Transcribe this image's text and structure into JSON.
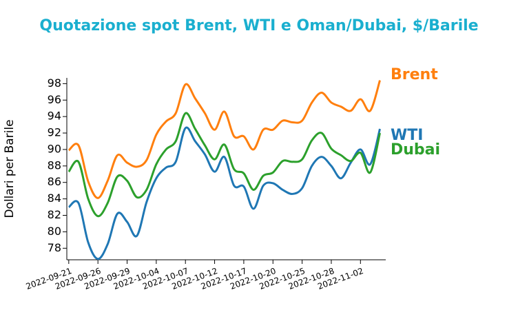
{
  "chart_data": {
    "type": "line",
    "title": "Quotazione spot Brent, WTI e Oman/Dubai, $/Barile",
    "y_label": "Dollari per Barile",
    "categories": [
      "2022-09-21",
      null,
      null,
      "2022-09-26",
      null,
      null,
      "2022-09-29",
      null,
      null,
      "2022-10-04",
      null,
      null,
      "2022-10-07",
      null,
      null,
      "2022-10-12",
      null,
      null,
      "2022-10-17",
      null,
      null,
      "2022-10-20",
      null,
      null,
      "2022-10-25",
      null,
      null,
      "2022-10-28",
      null,
      null,
      "2022-11-02",
      null,
      null
    ],
    "series": [
      {
        "name": "Brent",
        "color": "#ff7f0e",
        "values": [
          89.9,
          90.5,
          86.1,
          84.1,
          86.2,
          89.3,
          88.4,
          87.9,
          88.7,
          91.8,
          93.4,
          94.4,
          97.9,
          96.2,
          94.4,
          92.4,
          94.6,
          91.6,
          91.6,
          90.0,
          92.4,
          92.4,
          93.5,
          93.3,
          93.5,
          95.7,
          96.9,
          95.7,
          95.2,
          94.7,
          96.1,
          94.7,
          98.4
        ]
      },
      {
        "name": "WTI",
        "color": "#1f77b4",
        "values": [
          83.0,
          83.5,
          78.7,
          76.7,
          78.5,
          82.2,
          81.2,
          79.5,
          83.6,
          86.5,
          87.8,
          88.5,
          92.6,
          91.0,
          89.4,
          87.3,
          89.1,
          85.6,
          85.5,
          82.8,
          85.6,
          85.9,
          85.1,
          84.6,
          85.3,
          88.0,
          89.1,
          88.0,
          86.5,
          88.4,
          90.0,
          88.2,
          92.5
        ]
      },
      {
        "name": "Dubai",
        "color": "#2ca02c",
        "values": [
          87.3,
          88.5,
          84.0,
          81.9,
          83.5,
          86.7,
          86.2,
          84.2,
          85.1,
          88.2,
          90.0,
          91.0,
          94.4,
          92.5,
          90.5,
          88.8,
          90.6,
          87.6,
          87.1,
          85.1,
          86.8,
          87.2,
          88.6,
          88.5,
          88.8,
          91.1,
          92.0,
          90.1,
          89.3,
          88.6,
          89.6,
          87.2,
          92.0
        ]
      }
    ],
    "ylim": [
      76.6,
      98.7
    ],
    "yticks": [
      78,
      80,
      82,
      84,
      86,
      88,
      90,
      92,
      94,
      96,
      98
    ]
  }
}
